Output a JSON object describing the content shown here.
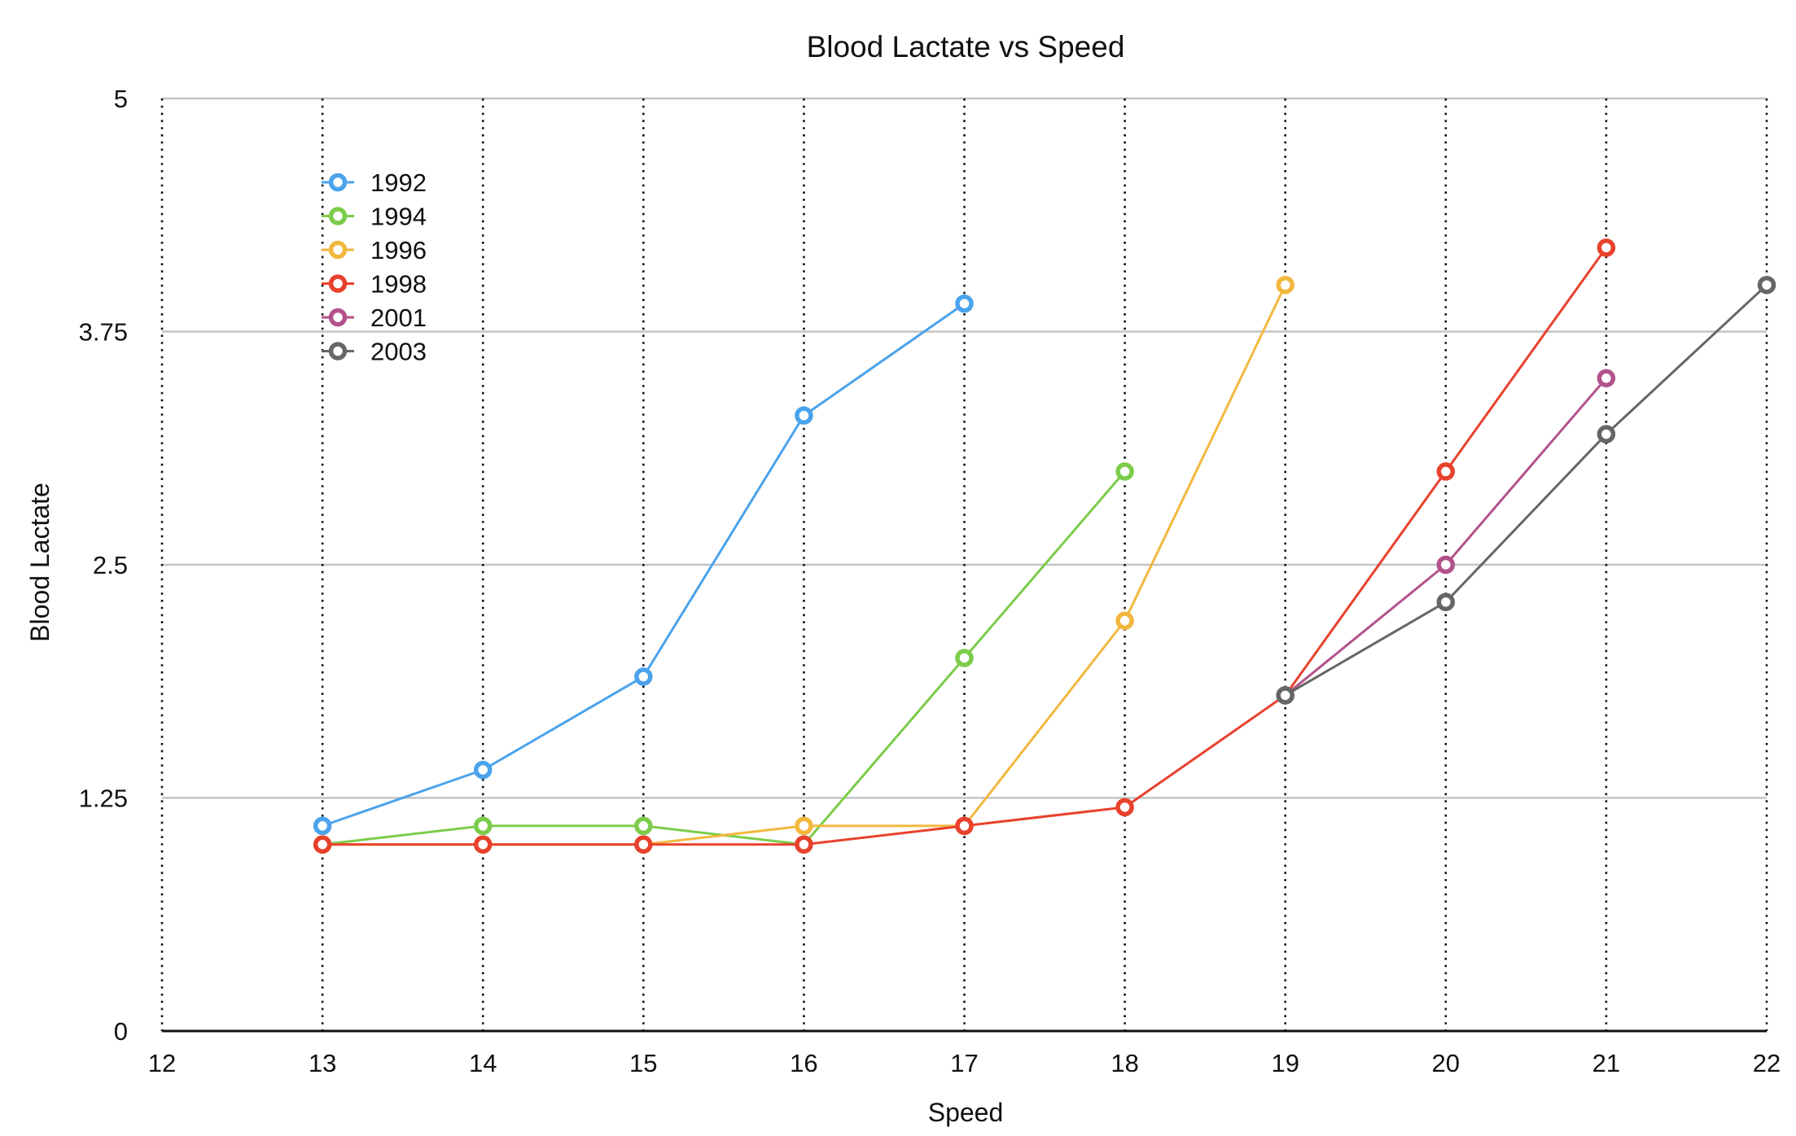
{
  "chart_data": {
    "type": "line",
    "title": "Blood Lactate vs Speed",
    "xlabel": "Speed",
    "ylabel": "Blood Lactate",
    "xlim": [
      12,
      22
    ],
    "ylim": [
      0,
      5
    ],
    "x_ticks": [
      "12",
      "13",
      "14",
      "15",
      "16",
      "17",
      "18",
      "19",
      "20",
      "21",
      "22"
    ],
    "y_ticks": [
      "0",
      "1.25",
      "2.5",
      "3.75",
      "5"
    ],
    "grid": {
      "horizontal": "solid",
      "vertical": "dotted"
    },
    "legend_position": "top-left",
    "series": [
      {
        "name": "1992",
        "color": "#4aa3ec",
        "x": [
          13,
          14,
          15,
          16,
          17
        ],
        "y": [
          1.1,
          1.4,
          1.9,
          3.3,
          3.9
        ]
      },
      {
        "name": "1994",
        "color": "#7ccc4b",
        "x": [
          13,
          14,
          15,
          16,
          17,
          18
        ],
        "y": [
          1.0,
          1.1,
          1.1,
          1.0,
          2.0,
          3.0
        ]
      },
      {
        "name": "1996",
        "color": "#f2b83e",
        "x": [
          13,
          14,
          15,
          16,
          17,
          18,
          19
        ],
        "y": [
          1.0,
          1.0,
          1.0,
          1.1,
          1.1,
          2.2,
          4.0
        ]
      },
      {
        "name": "1998",
        "color": "#e8412c",
        "x": [
          13,
          14,
          15,
          16,
          17,
          18,
          19,
          20,
          21
        ],
        "y": [
          1.0,
          1.0,
          1.0,
          1.0,
          1.1,
          1.2,
          1.8,
          3.0,
          4.2
        ]
      },
      {
        "name": "2001",
        "color": "#b3528a",
        "x": [
          19,
          20,
          21
        ],
        "y": [
          1.8,
          2.5,
          3.5
        ]
      },
      {
        "name": "2003",
        "color": "#666666",
        "x": [
          19,
          20,
          21,
          22
        ],
        "y": [
          1.8,
          2.3,
          3.2,
          4.0
        ]
      }
    ]
  }
}
